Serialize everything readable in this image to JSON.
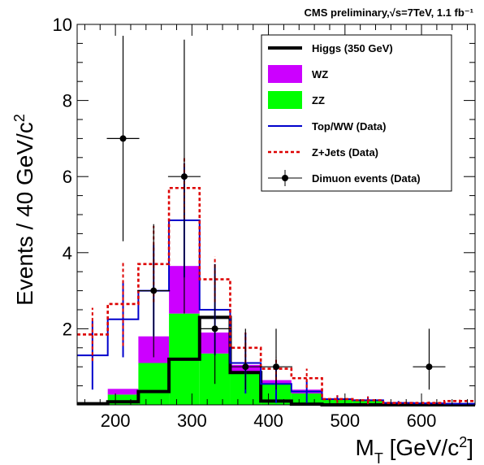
{
  "chart_data": {
    "type": "histogram",
    "header": "CMS preliminary,√s=7TeV, 1.1 fb⁻¹",
    "xlabel": "M_T [GeV/c^2]",
    "ylabel": "Events / 40 GeV/c^2",
    "xlim": [
      150,
      670
    ],
    "ylim": [
      0,
      10
    ],
    "x_ticks": [
      200,
      300,
      400,
      500,
      600
    ],
    "y_ticks": [
      2,
      4,
      6,
      8,
      10
    ],
    "bins": [
      150,
      190,
      230,
      270,
      310,
      350,
      390,
      430,
      470,
      510,
      550,
      590,
      630,
      670
    ],
    "stack": [
      {
        "name": "ZZ",
        "color": "#00ff00",
        "values": [
          0,
          0.27,
          1.1,
          2.4,
          1.35,
          0.85,
          0.55,
          0.3,
          0.14,
          0.12,
          0.05,
          0.03,
          0.02
        ]
      },
      {
        "name": "WZ",
        "color": "#cc00ff",
        "values": [
          0,
          0.15,
          0.7,
          1.25,
          0.55,
          0.2,
          0.1,
          0.1,
          0.02,
          0.02,
          0.01,
          0.01,
          0.01
        ]
      }
    ],
    "lines": [
      {
        "name": "Higgs (350 GeV)",
        "color": "#000000",
        "values": [
          0.03,
          0.08,
          0.35,
          1.2,
          2.3,
          0.85,
          0.1,
          0.02,
          0,
          0,
          0,
          0,
          0
        ],
        "errors": []
      },
      {
        "name": "Top/WW (Data)",
        "color": "#0000cc",
        "values": [
          1.3,
          2.25,
          3.0,
          4.85,
          2.5,
          1.1,
          0.55,
          0.35,
          0.15,
          0.12,
          0.05,
          0.04,
          0.03
        ],
        "errors": [
          0.9,
          1.0,
          1.2,
          1.5,
          1.2,
          0.8,
          0.5,
          0.3,
          0.1,
          0.1,
          0.05,
          0.04,
          0.03
        ]
      },
      {
        "name": "Z+Jets (Data)",
        "color": "#dd0000",
        "values": [
          1.85,
          2.65,
          3.7,
          5.7,
          3.3,
          1.5,
          0.95,
          0.7,
          0.15,
          0.12,
          0.05,
          0.05,
          0.1
        ],
        "errors": [
          0.7,
          1.1,
          1.0,
          0.8,
          0.6,
          0.4,
          0.3,
          0.25,
          0.1,
          0.1,
          0.05,
          0.05,
          0.05
        ]
      }
    ],
    "points": {
      "name": "Dimuon events (Data)",
      "color": "#000000",
      "x": [
        210,
        250,
        290,
        330,
        370,
        410,
        610
      ],
      "y": [
        7,
        3,
        6,
        2,
        1,
        1,
        1
      ],
      "err_up": [
        2.7,
        1.75,
        3.6,
        1.7,
        1.0,
        1.0,
        1.0
      ],
      "err_down": [
        2.7,
        1.75,
        3.6,
        1.45,
        0.6,
        0.6,
        0.6
      ]
    },
    "legend": [
      {
        "label": "Higgs (350 GeV)",
        "style": "thick-line",
        "color": "#000000"
      },
      {
        "label": "WZ",
        "style": "box",
        "color": "#cc00ff"
      },
      {
        "label": "ZZ",
        "style": "box",
        "color": "#00ff00"
      },
      {
        "label": "Top/WW (Data)",
        "style": "line",
        "color": "#0000cc"
      },
      {
        "label": "Z+Jets (Data)",
        "style": "dashed",
        "color": "#dd0000"
      },
      {
        "label": "Dimuon events (Data)",
        "style": "marker",
        "color": "#000000"
      }
    ],
    "legend_position": "top-right"
  }
}
